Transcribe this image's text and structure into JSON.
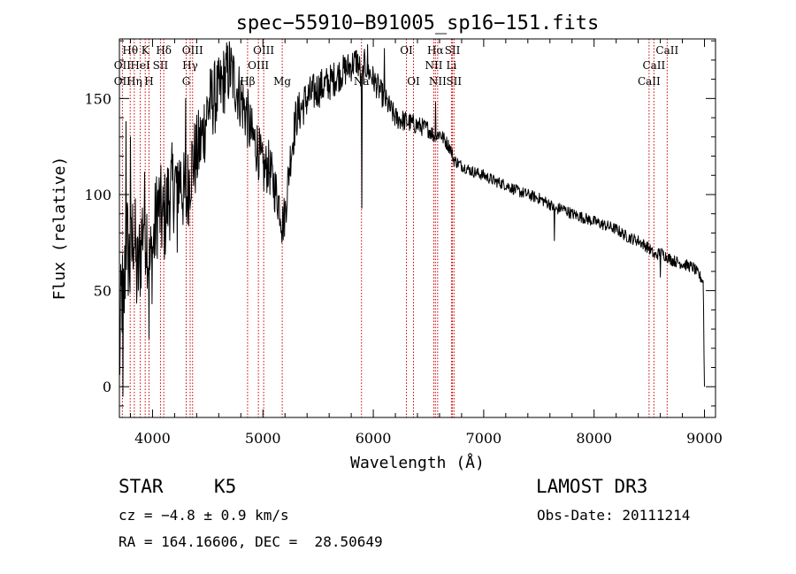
{
  "chart_data": {
    "type": "line",
    "title": "spec−55910−B91005_sp16−151.fits",
    "xlabel": "Wavelength (Å)",
    "ylabel": "Flux (relative)",
    "xlim": [
      3700,
      9100
    ],
    "ylim": [
      -16,
      181
    ],
    "x_ticks": [
      4000,
      5000,
      6000,
      7000,
      8000,
      9000
    ],
    "y_ticks": [
      0,
      50,
      100,
      150
    ],
    "line_color": "#000000",
    "marker_color": "#cc0000",
    "series": [
      {
        "name": "flux",
        "anchors": {
          "x": [
            3700,
            3720,
            3740,
            3760,
            3780,
            3800,
            3830,
            3860,
            3890,
            3920,
            3950,
            3970,
            4000,
            4050,
            4100,
            4150,
            4200,
            4250,
            4300,
            4350,
            4400,
            4450,
            4500,
            4550,
            4600,
            4650,
            4700,
            4750,
            4800,
            4850,
            4900,
            4950,
            5000,
            5050,
            5100,
            5150,
            5180,
            5200,
            5250,
            5300,
            5400,
            5500,
            5600,
            5700,
            5800,
            5850,
            5880,
            5895,
            5900,
            5920,
            5950,
            6000,
            6050,
            6100,
            6150,
            6200,
            6300,
            6400,
            6500,
            6560,
            6600,
            6650,
            6700,
            6730,
            6800,
            6900,
            7000,
            7100,
            7200,
            7300,
            7400,
            7500,
            7600,
            7650,
            7700,
            7800,
            7900,
            8000,
            8100,
            8200,
            8300,
            8400,
            8500,
            8550,
            8600,
            8650,
            8700,
            8800,
            8900,
            8950,
            8990,
            8995,
            9000
          ],
          "y": [
            10,
            50,
            40,
            80,
            70,
            60,
            85,
            55,
            70,
            90,
            80,
            60,
            70,
            95,
            85,
            100,
            105,
            110,
            95,
            115,
            120,
            130,
            145,
            150,
            152,
            160,
            165,
            158,
            150,
            142,
            130,
            125,
            112,
            115,
            105,
            95,
            85,
            90,
            120,
            140,
            150,
            155,
            158,
            163,
            167,
            170,
            165,
            150,
            160,
            168,
            165,
            160,
            155,
            150,
            145,
            140,
            138,
            136,
            134,
            130,
            132,
            128,
            124,
            118,
            115,
            112,
            110,
            107,
            105,
            102,
            100,
            98,
            95,
            92,
            93,
            90,
            88,
            86,
            84,
            82,
            78,
            76,
            72,
            68,
            70,
            68,
            66,
            64,
            62,
            58,
            55,
            20,
            0
          ]
        },
        "noise": {
          "x": [
            3700,
            4400,
            5200,
            6200,
            6800,
            9000
          ],
          "amplitude": [
            30,
            22,
            12,
            6,
            3,
            3
          ]
        },
        "spikes": [
          {
            "x": 3733,
            "y": -5
          },
          {
            "x": 3760,
            "y": 138
          },
          {
            "x": 3800,
            "y": 130
          },
          {
            "x": 3968,
            "y": 25
          },
          {
            "x": 4226,
            "y": 70
          },
          {
            "x": 4300,
            "y": 150
          },
          {
            "x": 5174,
            "y": 75
          },
          {
            "x": 5895,
            "y": 93
          },
          {
            "x": 5950,
            "y": 178
          },
          {
            "x": 6100,
            "y": 176
          },
          {
            "x": 6563,
            "y": 148
          },
          {
            "x": 7640,
            "y": 76
          },
          {
            "x": 8600,
            "y": 57
          }
        ]
      }
    ],
    "line_labels": [
      {
        "text": "Hθ",
        "x": 3798,
        "row": 1
      },
      {
        "text": "K",
        "x": 3934,
        "row": 1
      },
      {
        "text": "Hδ",
        "x": 4102,
        "row": 1
      },
      {
        "text": "OIII",
        "x": 4363,
        "row": 1
      },
      {
        "text": "OIII",
        "x": 5007,
        "row": 1
      },
      {
        "text": "OI",
        "x": 6300,
        "row": 1
      },
      {
        "text": "Hα",
        "x": 6563,
        "row": 1
      },
      {
        "text": "SII",
        "x": 6717,
        "row": 1
      },
      {
        "text": "CaII",
        "x": 8662,
        "row": 1
      },
      {
        "text": "OII",
        "x": 3727,
        "row": 2
      },
      {
        "text": "HeI",
        "x": 3889,
        "row": 2
      },
      {
        "text": "SII",
        "x": 4072,
        "row": 2
      },
      {
        "text": "Hγ",
        "x": 4341,
        "row": 2
      },
      {
        "text": "OIII",
        "x": 4959,
        "row": 2
      },
      {
        "text": "NII",
        "x": 6548,
        "row": 2
      },
      {
        "text": "Li",
        "x": 6708,
        "row": 2
      },
      {
        "text": "CaII",
        "x": 8542,
        "row": 2
      },
      {
        "text": "OII",
        "x": 3727,
        "row": 3
      },
      {
        "text": "Hη",
        "x": 3835,
        "row": 3
      },
      {
        "text": "H",
        "x": 3968,
        "row": 3
      },
      {
        "text": "G",
        "x": 4305,
        "row": 3
      },
      {
        "text": "Hβ",
        "x": 4861,
        "row": 3
      },
      {
        "text": "Mg",
        "x": 5175,
        "row": 3
      },
      {
        "text": "Na",
        "x": 5893,
        "row": 3
      },
      {
        "text": "OI",
        "x": 6364,
        "row": 3
      },
      {
        "text": "NII",
        "x": 6583,
        "row": 3
      },
      {
        "text": "SII",
        "x": 6731,
        "row": 3
      },
      {
        "text": "CaII",
        "x": 8498,
        "row": 3
      }
    ],
    "line_markers": [
      3727,
      3798,
      3835,
      3889,
      3934,
      3968,
      4072,
      4102,
      4305,
      4341,
      4363,
      4861,
      4959,
      5007,
      5175,
      5893,
      6300,
      6364,
      6548,
      6563,
      6583,
      6708,
      6717,
      6731,
      8498,
      8542,
      8662
    ]
  },
  "info": {
    "class_text": "STAR",
    "subclass_text": "K5",
    "survey_text": "LAMOST DR3",
    "cz_text": "cz = −4.8 ± 0.9 km/s",
    "obs_date_text": "Obs-Date: 20111214",
    "radec_text": "RA = 164.16606, DEC =  28.50649"
  }
}
